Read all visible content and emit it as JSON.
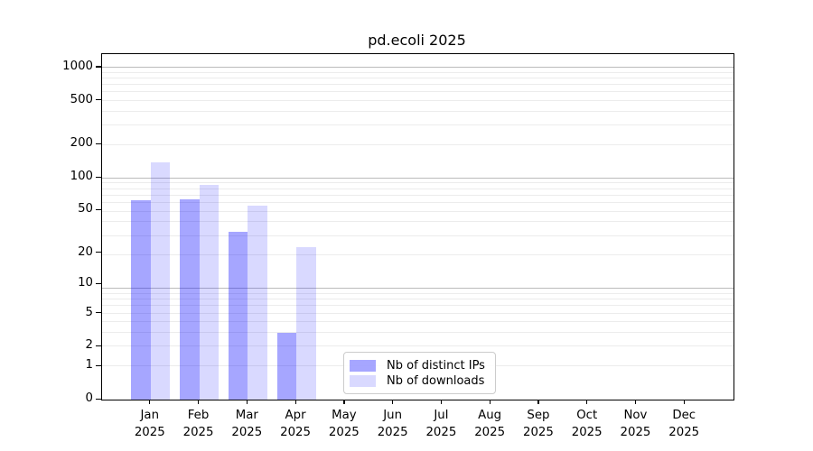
{
  "title": "pd.ecoli 2025",
  "chart_data": {
    "type": "bar",
    "title": "pd.ecoli 2025",
    "xlabel": "",
    "ylabel": "",
    "yscale": "log1p",
    "grid": true,
    "legend_position": "lower center-right inside plot",
    "categories": [
      "Jan",
      "Feb",
      "Mar",
      "Apr",
      "May",
      "Jun",
      "Jul",
      "Aug",
      "Sep",
      "Oct",
      "Nov",
      "Dec"
    ],
    "category_year": "2025",
    "yticks": [
      0,
      1,
      2,
      5,
      10,
      20,
      50,
      100,
      200,
      500,
      1000
    ],
    "ylim": [
      0,
      1320
    ],
    "series": [
      {
        "name": "Nb of distinct IPs",
        "color": "rgba(0,0,255,0.35)",
        "hex_on_white": "#a6a6ff",
        "values": [
          62,
          64,
          32,
          3,
          0,
          0,
          0,
          0,
          0,
          0,
          0,
          0
        ]
      },
      {
        "name": "Nb of downloads",
        "color": "rgba(0,0,255,0.15)",
        "hex_on_white": "#d9d9ff",
        "values": [
          137,
          86,
          56,
          23,
          0,
          0,
          0,
          0,
          0,
          0,
          0,
          0
        ]
      }
    ],
    "colors": {
      "grid_major": "#bbbbbb",
      "grid_minor": "#ececec",
      "spine": "#000000",
      "legend_border": "#cccccc",
      "background": "#ffffff"
    }
  }
}
